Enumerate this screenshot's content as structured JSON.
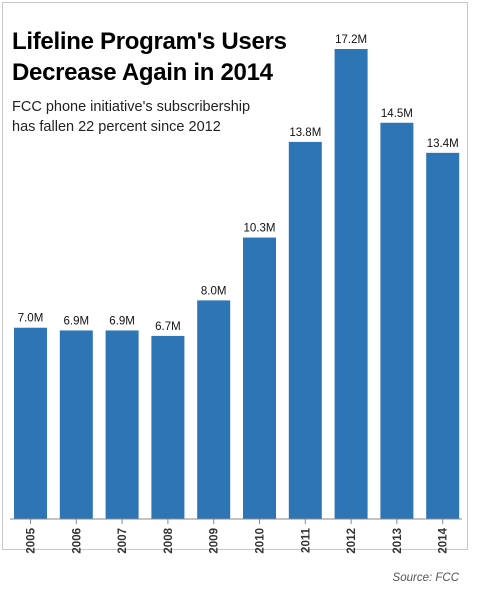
{
  "title_lines": [
    "Lifeline Program's Users",
    "Decrease Again in 2014"
  ],
  "subtitle_lines": [
    "FCC phone initiative's subscribership",
    "has fallen 22 percent since 2012"
  ],
  "source": "Source: FCC",
  "colors": {
    "bar": "#2e75b6",
    "axis": "#888888"
  },
  "chart_data": {
    "type": "bar",
    "title": "Lifeline Program's Users Decrease Again in 2014",
    "subtitle": "FCC phone initiative's subscribership has fallen 22 percent since 2012",
    "categories": [
      "2005",
      "2006",
      "2007",
      "2008",
      "2009",
      "2010",
      "2011",
      "2012",
      "2013",
      "2014"
    ],
    "values": [
      7.0,
      6.9,
      6.9,
      6.7,
      8.0,
      10.3,
      13.8,
      17.2,
      14.5,
      13.4
    ],
    "labels": [
      "7.0M",
      "6.9M",
      "6.9M",
      "6.7M",
      "8.0M",
      "10.3M",
      "13.8M",
      "17.2M",
      "14.5M",
      "13.4M"
    ],
    "ylim": [
      0,
      17.2
    ],
    "grid": false,
    "legend": "none",
    "xlabel": "",
    "ylabel": ""
  }
}
